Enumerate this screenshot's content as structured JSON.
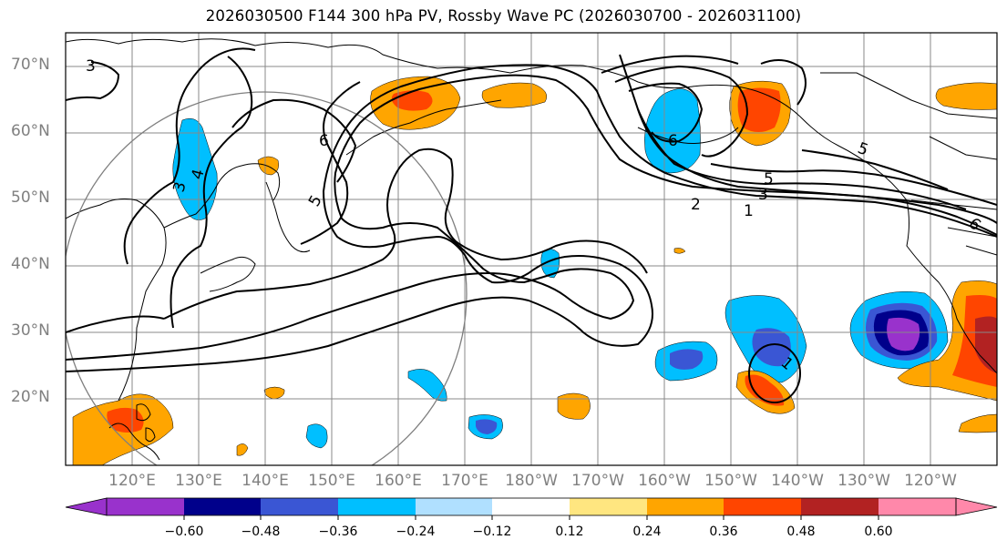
{
  "title": "2026030500 F144 300 hPa PV, Rossby Wave PC (2026030700 - 2026031100)",
  "lat_labels": [
    "70°N",
    "60°N",
    "50°N",
    "40°N",
    "30°N",
    "20°N"
  ],
  "lon_labels": [
    "120°E",
    "130°E",
    "140°E",
    "150°E",
    "160°E",
    "170°E",
    "180°W",
    "170°W",
    "160°W",
    "150°W",
    "140°W",
    "130°W",
    "120°W"
  ],
  "contour_labels": [
    "3",
    "4",
    "3",
    "6",
    "5",
    "5",
    "5",
    "6",
    "2",
    "3",
    "1",
    "6",
    "1"
  ],
  "colorbar": {
    "tick_labels": [
      "−0.60",
      "−0.48",
      "−0.36",
      "−0.24",
      "−0.12",
      "0.12",
      "0.24",
      "0.36",
      "0.48",
      "0.60"
    ],
    "colors": [
      "#9932CC",
      "#00008B",
      "#3A56D4",
      "#00BFFF",
      "#B0E0FF",
      "#FFFFFF",
      "#FFE680",
      "#FFA500",
      "#FF4500",
      "#B22222",
      "#FF88AA"
    ]
  }
}
